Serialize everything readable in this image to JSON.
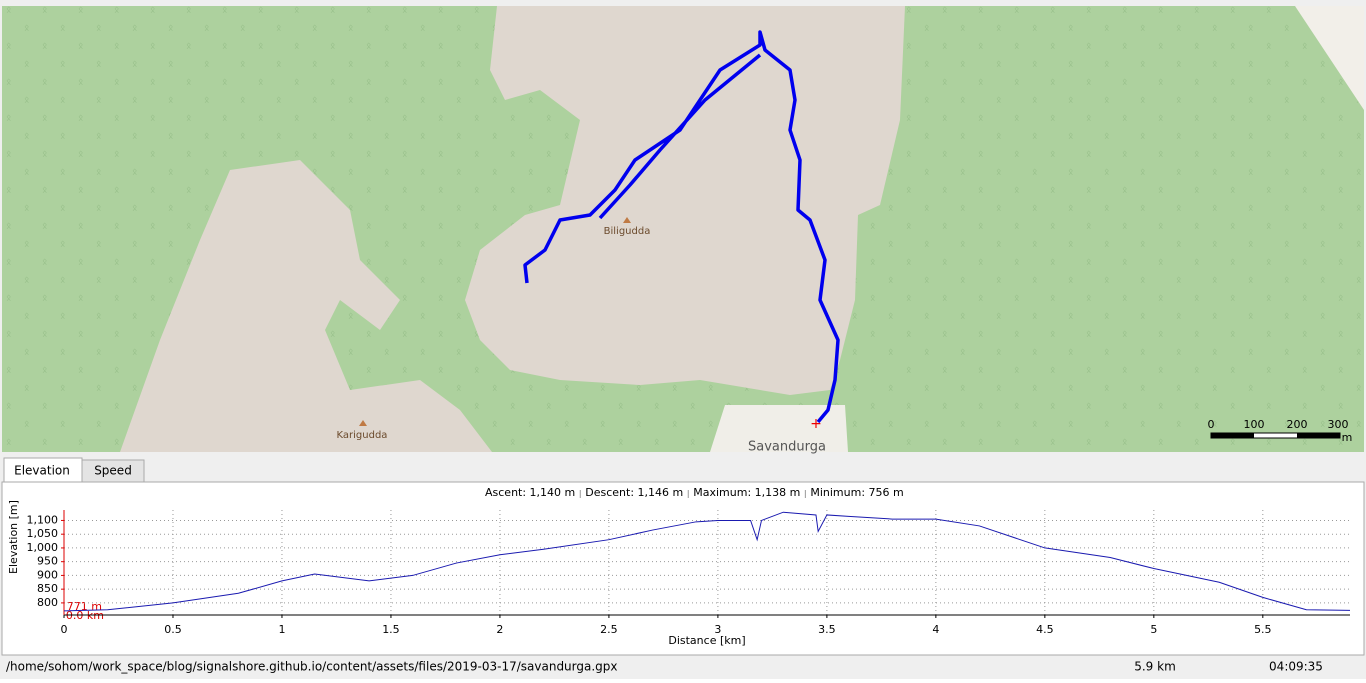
{
  "map": {
    "labels": [
      "Biligudda",
      "Karigudda",
      "Savandurga"
    ],
    "scale_labels": [
      "0",
      "100",
      "200",
      "300",
      "m"
    ]
  },
  "tabs": [
    "Elevation",
    "Speed"
  ],
  "stats": [
    "Ascent: 1,140 m",
    "Descent: 1,146 m",
    "Maximum: 1,138 m",
    "Minimum: 756 m"
  ],
  "chart_data": {
    "type": "line",
    "x_label": "Distance [km]",
    "y_label": "Elevation [m]",
    "cursor_labels": [
      "771 m",
      "0.0 km"
    ],
    "x": [
      0,
      0.2,
      0.5,
      0.8,
      1.0,
      1.15,
      1.4,
      1.6,
      1.8,
      2.0,
      2.2,
      2.5,
      2.7,
      2.9,
      3.0,
      3.15,
      3.18,
      3.2,
      3.3,
      3.45,
      3.46,
      3.5,
      3.6,
      3.8,
      4.0,
      4.2,
      4.5,
      4.8,
      5.0,
      5.3,
      5.5,
      5.7,
      5.9
    ],
    "series": [
      {
        "name": "Elevation",
        "color": "#1a1ab0",
        "values": [
          771,
          775,
          800,
          835,
          880,
          905,
          880,
          900,
          945,
          975,
          995,
          1030,
          1065,
          1095,
          1100,
          1100,
          1030,
          1100,
          1130,
          1120,
          1060,
          1120,
          1115,
          1105,
          1105,
          1080,
          1000,
          965,
          925,
          875,
          820,
          775,
          773
        ]
      }
    ],
    "xlim": [
      0,
      5.9
    ],
    "ylim": [
      756,
      1138
    ],
    "xticks": [
      0,
      0.5,
      1,
      1.5,
      2,
      2.5,
      3,
      3.5,
      4,
      4.5,
      5,
      5.5
    ],
    "yticks": [
      800,
      850,
      900,
      950,
      {
        "value": 1000,
        "label": "1,000"
      },
      {
        "value": 1050,
        "label": "1,050"
      },
      {
        "value": 1100,
        "label": "1,100"
      }
    ],
    "grid": true
  },
  "status": {
    "file": "/home/sohom/work_space/blog/signalshore.github.io/content/assets/files/2019-03-17/savandurga.gpx",
    "distance": "5.9 km",
    "duration": "04:09:35"
  }
}
